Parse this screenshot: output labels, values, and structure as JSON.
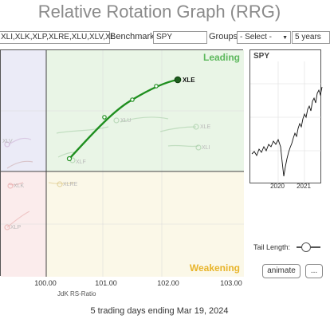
{
  "title": "Relative Rotation Graph (RRG)",
  "toolbar": {
    "symbols_value": "XLI,XLK,XLP,XLRE,XLU,XLV,XL",
    "benchmark_label": "Benchmark:",
    "benchmark_value": "SPY",
    "groups_label": "Groups:",
    "groups_value": "- Select -",
    "period_value": "5 years"
  },
  "quadrants": {
    "leading": "Leading",
    "weakening": "Weakening"
  },
  "highlighted_symbol": "XLE",
  "faded_symbols": [
    "XLV",
    "XLU",
    "XLE",
    "XLI",
    "XLRE",
    "XLF",
    "XLK",
    "XLP"
  ],
  "xaxis": {
    "ticks": [
      "100.00",
      "101.00",
      "102.00",
      "103.00"
    ],
    "label": "JdK RS-Ratio"
  },
  "footer": "5 trading days ending Mar 19, 2024",
  "mini_chart": {
    "label": "SPY",
    "years": [
      "2020",
      "2021"
    ]
  },
  "controls": {
    "tail_length_label": "Tail Length:",
    "animate_label": "animate",
    "more_label": "..."
  },
  "colors": {
    "leading_bg": "#e9f5e6",
    "weakening_bg": "#fbf8e8",
    "improving_bg": "#ebebf7",
    "lagging_bg": "#fbecec",
    "highlight_line": "#1f8f1f"
  }
}
